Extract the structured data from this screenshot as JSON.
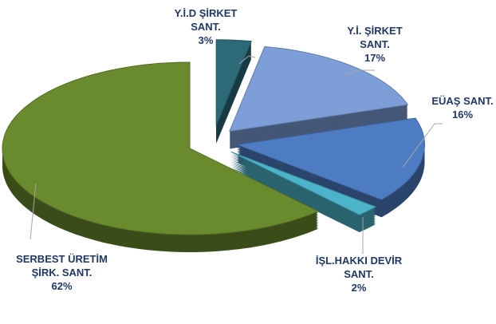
{
  "chart_data": {
    "type": "pie",
    "categories": [
      "Y.İ.D  ŞİRKET SANT.",
      "Y.İ. ŞİRKET SANT.",
      "EÜAŞ SANT.",
      "İŞL.HAKKI DEVİR SANT.",
      "SERBEST ÜRETİM ŞİRK. SANT."
    ],
    "values": [
      3,
      17,
      16,
      2,
      62
    ],
    "value_labels": [
      "3%",
      "17%",
      "16%",
      "2%",
      "62%"
    ],
    "colors": [
      "#2c6a78",
      "#7d9ed6",
      "#4d7cc3",
      "#4cb4c9",
      "#6a8a2e"
    ]
  }
}
